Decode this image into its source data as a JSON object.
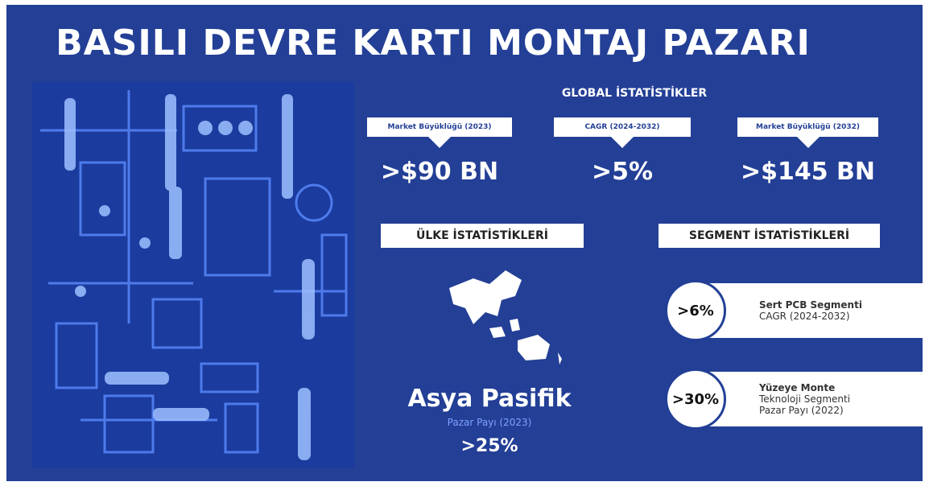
{
  "title": "BASILI DEVRE KARTI MONTAJ PAZARI",
  "global": {
    "heading": "GLOBAL İSTATİSTİKLER",
    "stats": [
      {
        "label": "Market Büyüklüğü (2023)",
        "value": ">$90 BN"
      },
      {
        "label": "CAGR (2024-2032)",
        "value": ">5%"
      },
      {
        "label": "Market Büyüklüğü (2032)",
        "value": ">$145 BN"
      }
    ]
  },
  "country": {
    "heading": "ÜLKE İSTATİSTİKLERİ",
    "region": "Asya Pasifik",
    "caption": "Pazar Payı (2023)",
    "value": ">25%"
  },
  "segment": {
    "heading": "SEGMENT İSTATİSTİKLERİ",
    "items": [
      {
        "value": ">6%",
        "lines": [
          "Sert PCB Segmenti",
          "CAGR (2024-2032)"
        ]
      },
      {
        "value": ">30%",
        "lines": [
          "Yüzeye Monte",
          "Teknoloji Segmenti",
          "Pazar Payı (2022)"
        ]
      }
    ]
  }
}
